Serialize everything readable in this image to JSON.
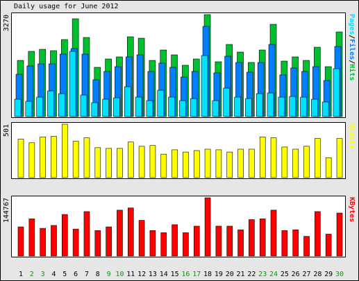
{
  "title": "Daily usage for June 2012",
  "chart_data": [
    {
      "type": "grouped-bar",
      "legend_separator": "/",
      "series": [
        {
          "name": "Pages",
          "color": "#00e0ff",
          "values": [
            556,
            489,
            623,
            823,
            734,
            2091,
            690,
            445,
            556,
            600,
            956,
            623,
            512,
            845,
            623,
            512,
            578,
            1957,
            512,
            912,
            623,
            578,
            734,
            756,
            623,
            645,
            623,
            556,
            467,
            1535
          ]
        },
        {
          "name": "Files",
          "color": "#0080ff",
          "values": [
            1357,
            1624,
            1690,
            1690,
            2002,
            2180,
            2002,
            1179,
            1446,
            1601,
            1913,
            1979,
            1446,
            1713,
            1579,
            1268,
            1446,
            2892,
            1401,
            1935,
            1735,
            1424,
            1735,
            2313,
            1335,
            1557,
            1446,
            1601,
            1157,
            2246
          ]
        },
        {
          "name": "Hits",
          "color": "#00c030",
          "values": [
            1801,
            2091,
            2157,
            2113,
            2469,
            3136,
            2536,
            1579,
            1846,
            1913,
            2558,
            2513,
            1801,
            2135,
            1979,
            1646,
            1846,
            3270,
            1757,
            2313,
            2068,
            1735,
            2135,
            2958,
            1779,
            1913,
            1801,
            2224,
            1601,
            2713
          ]
        }
      ],
      "ylim": [
        0,
        3270
      ],
      "yticks": [
        3270
      ]
    },
    {
      "type": "bar",
      "series": [
        {
          "name": "Visits",
          "color": "#ffff00",
          "values": [
            361,
            327,
            381,
            387,
            501,
            341,
            374,
            281,
            274,
            274,
            334,
            294,
            301,
            220,
            261,
            240,
            254,
            267,
            261,
            240,
            267,
            267,
            381,
            374,
            287,
            267,
            294,
            367,
            187,
            367
          ]
        }
      ],
      "ylim": [
        0,
        501
      ],
      "yticks": [
        501
      ]
    },
    {
      "type": "bar",
      "categories": [
        "1",
        "2",
        "3",
        "4",
        "5",
        "6",
        "7",
        "8",
        "9",
        "10",
        "11",
        "12",
        "13",
        "14",
        "15",
        "16",
        "17",
        "18",
        "19",
        "20",
        "21",
        "22",
        "23",
        "24",
        "25",
        "26",
        "27",
        "28",
        "29",
        "30"
      ],
      "category_colors": [
        "#000000",
        "#00a000",
        "#00a000",
        "#000000",
        "#000000",
        "#000000",
        "#000000",
        "#000000",
        "#00a000",
        "#00a000",
        "#000000",
        "#000000",
        "#000000",
        "#000000",
        "#000000",
        "#00a000",
        "#00a000",
        "#000000",
        "#000000",
        "#000000",
        "#000000",
        "#000000",
        "#00a000",
        "#00a000",
        "#000000",
        "#000000",
        "#000000",
        "#000000",
        "#000000",
        "#00a000"
      ],
      "series": [
        {
          "name": "KBytes",
          "color": "#ff0000",
          "values": [
            72384,
            92290,
            68765,
            76003,
            103147,
            66955,
            110384,
            63336,
            72384,
            114004,
            119433,
            88670,
            63336,
            57907,
            77813,
            57907,
            74194,
            144767,
            74194,
            74194,
            65146,
            90479,
            92290,
            114004,
            63336,
            65146,
            48859,
            110384,
            54288,
            106766
          ]
        }
      ],
      "ylim": [
        0,
        144767
      ],
      "yticks": [
        144767
      ]
    }
  ]
}
